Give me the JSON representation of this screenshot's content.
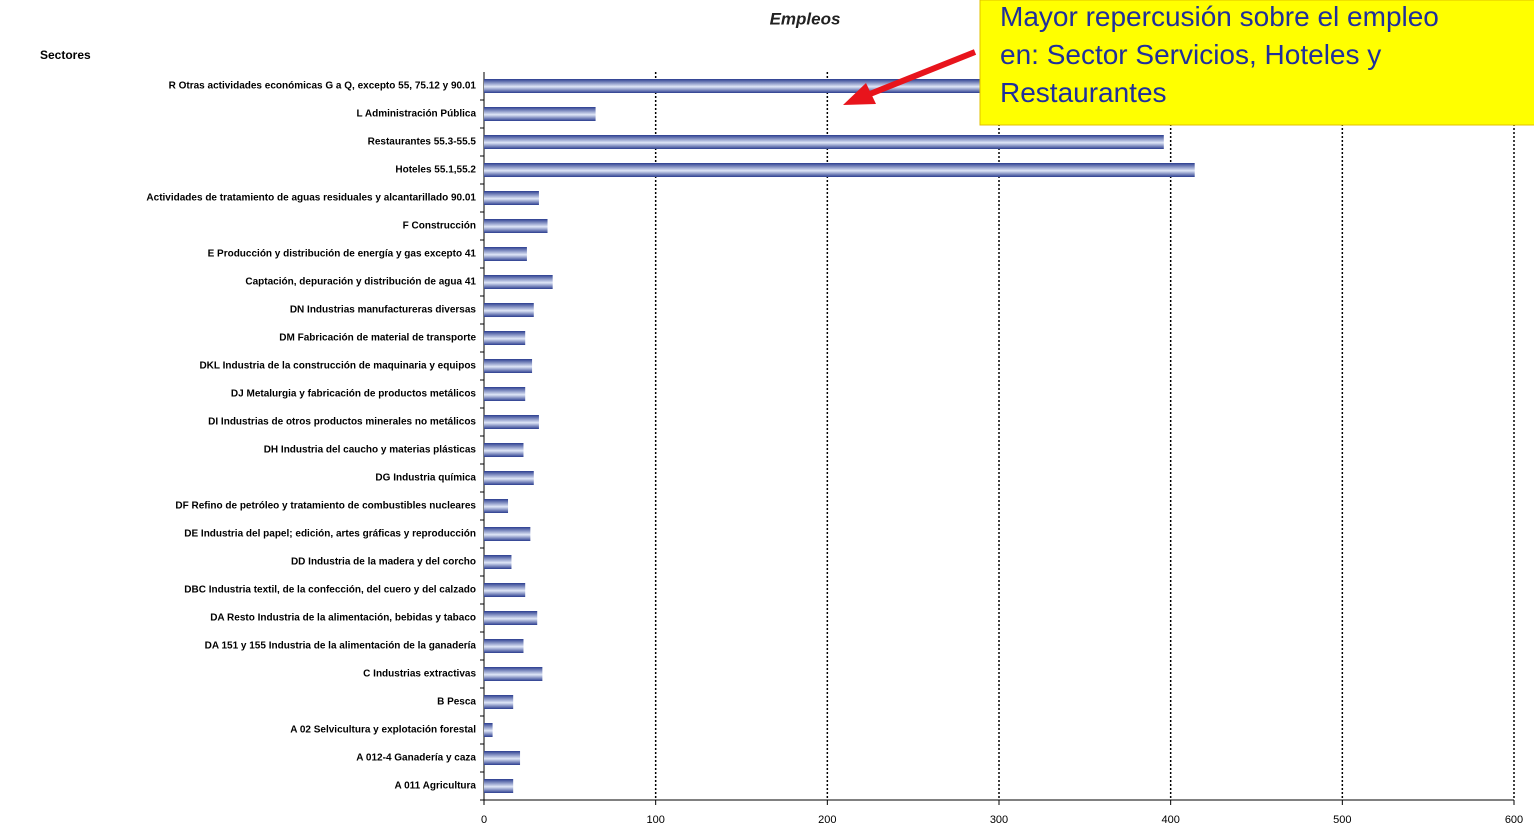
{
  "chart_data": {
    "type": "bar",
    "orientation": "horizontal",
    "title": "Empleos",
    "y_axis_label": "Sectores",
    "categories": [
      "R Otras actividades económicas G a Q, excepto 55, 75.12 y 90.01",
      "L Administración Pública",
      "Restaurantes 55.3-55.5",
      "Hoteles 55.1,55.2",
      "Actividades de tratamiento de aguas residuales y alcantarillado 90.01",
      "F Construcción",
      "E Producción y distribución de energía y gas excepto 41",
      "Captación, depuración y distribución de agua 41",
      "DN Industrias manufactureras diversas",
      "DM Fabricación de material de transporte",
      "DKL Industria de la construcción de maquinaria y equipos",
      "DJ Metalurgia y fabricación de productos metálicos",
      "DI Industrias de otros productos minerales no metálicos",
      "DH Industria del caucho y materias plásticas",
      "DG Industria química",
      "DF Refino de petróleo y  tratamiento de combustibles nucleares",
      "DE Industria del papel; edición, artes gráficas y reproducción",
      "DD Industria de la madera y del corcho",
      "DBC Industria textil, de la confección, del cuero y del calzado",
      "DA Resto Industria de la alimentación, bebidas y tabaco",
      "DA 151 y 155 Industria de la alimentación de la ganadería",
      "C Industrias extractivas",
      "B Pesca",
      "A 02 Selvicultura y explotación forestal",
      "A 012-4 Ganadería y caza",
      "A 011 Agricultura"
    ],
    "values": [
      540,
      65,
      396,
      414,
      32,
      37,
      25,
      40,
      29,
      24,
      28,
      24,
      32,
      23,
      29,
      14,
      27,
      16,
      24,
      31,
      23,
      34,
      17,
      5,
      21,
      17
    ],
    "color": "#2b3d8f",
    "xlim": [
      0,
      600
    ],
    "xticks": [
      0,
      100,
      200,
      300,
      400,
      500,
      600
    ],
    "grid": true,
    "annotation": [
      "Mayor repercusión sobre el empleo",
      "en: Sector Servicios, Hoteles y",
      "Restaurantes"
    ]
  }
}
